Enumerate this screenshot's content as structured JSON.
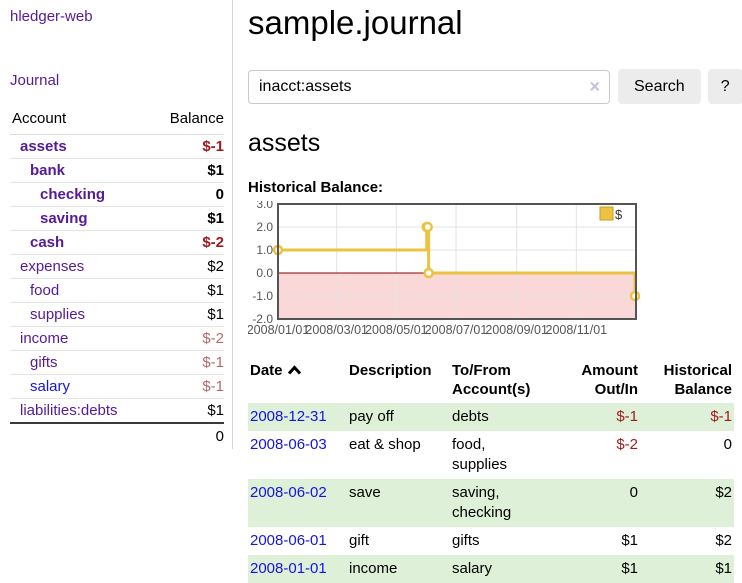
{
  "colors": {
    "link_purple": "#551a9b",
    "link_blue": "#1414e0",
    "negative_strong": "#9e1a1a",
    "negative_soft": "#b26a6a",
    "row_stripe_green": "#dff0d8",
    "button_gray": "#ececec"
  },
  "sidebar": {
    "brand": "hledger-web",
    "journal_link": "Journal",
    "table": {
      "account_header": "Account",
      "balance_header": "Balance",
      "accounts": [
        {
          "name": "assets",
          "indent": 1,
          "current": true,
          "balance": "$-1",
          "negative": "strong"
        },
        {
          "name": "bank",
          "indent": 2,
          "current": true,
          "balance": "$1"
        },
        {
          "name": "checking",
          "indent": 3,
          "current": true,
          "balance": "0"
        },
        {
          "name": "saving",
          "indent": 3,
          "current": true,
          "balance": "$1"
        },
        {
          "name": "cash",
          "indent": 2,
          "current": true,
          "balance": "$-2",
          "negative": "strong"
        },
        {
          "name": "expenses",
          "indent": 1,
          "current": false,
          "balance": "$2"
        },
        {
          "name": "food",
          "indent": 2,
          "current": false,
          "balance": "$1"
        },
        {
          "name": "supplies",
          "indent": 2,
          "current": false,
          "balance": "$1"
        },
        {
          "name": "income",
          "indent": 1,
          "current": false,
          "balance": "$-2",
          "negative": "soft"
        },
        {
          "name": "gifts",
          "indent": 2,
          "current": false,
          "balance": "$-1",
          "negative": "soft"
        },
        {
          "name": "salary",
          "indent": 2,
          "current": false,
          "balance": "$-1",
          "negative": "soft",
          "link_style": "unvisited"
        },
        {
          "name": "liabilities:debts",
          "indent": 1,
          "current": false,
          "balance": "$1"
        }
      ],
      "total": "0"
    }
  },
  "main": {
    "title": "sample.journal",
    "search": {
      "value": "inacct:assets",
      "clear_label": "×",
      "search_button": "Search",
      "help_button": "?"
    },
    "account_heading": "assets",
    "chart_title": "Historical Balance:"
  },
  "chart_data": {
    "type": "line",
    "title": "Historical Balance",
    "legend": "$",
    "legend_position": "top-right",
    "grid": true,
    "ylim": [
      -2,
      3
    ],
    "xlim": [
      "2008-01-01",
      "2009-01-01"
    ],
    "y_ticks": [
      3.0,
      2.0,
      1.0,
      0.0,
      -1.0,
      -2.0
    ],
    "x_ticks": [
      "2008/01/01",
      "2008/03/01",
      "2008/05/01",
      "2008/07/01",
      "2008/09/01",
      "2008/11/01"
    ],
    "series": [
      {
        "name": "$",
        "step": true,
        "points": [
          [
            "2008-01-01",
            1
          ],
          [
            "2008-06-01",
            2
          ],
          [
            "2008-06-02",
            2
          ],
          [
            "2008-06-03",
            0
          ],
          [
            "2008-12-31",
            -1
          ]
        ]
      }
    ],
    "colors": {
      "line": "#edc240",
      "marker_fill": "#ffffff",
      "negative_region": "#fbd8d8",
      "zero_line": "#8b0000",
      "grid": "#e3e3e3",
      "border": "#545454",
      "legend_box_stroke": "#c79f2e",
      "tick_text": "#555555"
    }
  },
  "register": {
    "headers": {
      "date": "Date",
      "description": "Description",
      "accounts": "To/From Account(s)",
      "amount": "Amount Out/In",
      "balance": "Historical Balance"
    },
    "rows": [
      {
        "date": "2008-12-31",
        "description": "pay off",
        "accounts": "debts",
        "amount": "$-1",
        "amount_negative": true,
        "balance": "$-1",
        "balance_negative": true
      },
      {
        "date": "2008-06-03",
        "description": "eat & shop",
        "accounts": "food, supplies",
        "amount": "$-2",
        "amount_negative": true,
        "balance": "0",
        "balance_negative": false
      },
      {
        "date": "2008-06-02",
        "description": "save",
        "accounts": "saving, checking",
        "amount": "0",
        "amount_negative": false,
        "balance": "$2",
        "balance_negative": false
      },
      {
        "date": "2008-06-01",
        "description": "gift",
        "accounts": "gifts",
        "amount": "$1",
        "amount_negative": false,
        "balance": "$2",
        "balance_negative": false
      },
      {
        "date": "2008-01-01",
        "description": "income",
        "accounts": "salary",
        "amount": "$1",
        "amount_negative": false,
        "balance": "$1",
        "balance_negative": false
      }
    ]
  }
}
